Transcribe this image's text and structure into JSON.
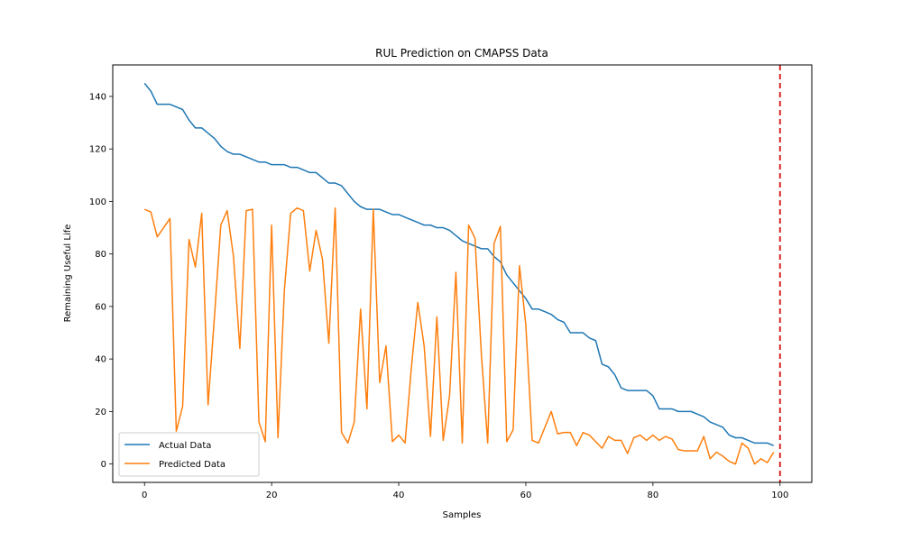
{
  "chart_data": {
    "type": "line",
    "title": "RUL Prediction on CMAPSS Data",
    "xlabel": "Samples",
    "ylabel": "Remaining Useful Life",
    "xlim": [
      -5,
      105
    ],
    "ylim": [
      -7,
      152
    ],
    "xticks": [
      0,
      20,
      40,
      60,
      80,
      100
    ],
    "yticks": [
      0,
      20,
      40,
      60,
      80,
      100,
      120,
      140
    ],
    "grid": false,
    "legend_position": "lower-left",
    "vline": {
      "x": 100,
      "color": "#d62728",
      "style": "dashed"
    },
    "series": [
      {
        "name": "Actual Data",
        "color": "#1f77b4",
        "values": [
          145,
          142,
          137,
          137,
          137,
          136,
          135,
          131,
          128,
          128,
          126,
          124,
          121,
          119,
          118,
          118,
          117,
          116,
          115,
          115,
          114,
          114,
          114,
          113,
          113,
          112,
          111,
          111,
          109,
          107,
          107,
          106,
          103,
          100,
          98,
          97,
          97,
          97,
          96,
          95,
          95,
          94,
          93,
          92,
          91,
          91,
          90,
          90,
          89,
          87,
          85,
          84,
          83,
          82,
          82,
          79,
          77,
          72,
          69,
          66,
          63,
          59,
          59,
          58,
          57,
          55,
          54,
          50,
          50,
          50,
          48,
          47,
          38,
          37,
          34,
          29,
          28,
          28,
          28,
          28,
          26,
          21,
          21,
          21,
          20,
          20,
          20,
          19,
          18,
          16,
          15,
          14,
          11,
          10,
          10,
          9,
          8,
          8,
          8,
          7
        ]
      },
      {
        "name": "Predicted Data",
        "color": "#ff7f0e",
        "values": [
          97,
          96,
          86.5,
          90,
          93.5,
          12.5,
          22,
          85.5,
          75,
          95.5,
          22.5,
          56,
          91,
          96.5,
          79,
          44,
          96.5,
          97,
          16,
          8.5,
          91,
          10,
          66,
          95.5,
          97.5,
          96.5,
          73.5,
          89,
          78,
          46,
          97.5,
          12,
          8,
          16,
          59,
          21,
          97,
          31,
          45,
          8.5,
          11,
          8,
          37,
          61.5,
          45,
          10.5,
          56,
          9,
          26,
          73,
          8,
          91,
          86,
          42,
          8,
          84,
          90.5,
          8.5,
          13,
          75.5,
          53,
          9,
          8,
          14,
          20,
          11.5,
          12,
          12,
          7,
          12,
          11,
          8.5,
          6,
          10.5,
          9,
          9,
          4,
          10,
          11,
          9,
          11,
          9,
          10.5,
          9.5,
          5.5,
          5,
          5,
          5,
          10.5,
          2,
          4.5,
          3,
          1,
          0,
          8,
          6,
          0,
          2,
          0.5,
          4.5
        ]
      }
    ]
  }
}
